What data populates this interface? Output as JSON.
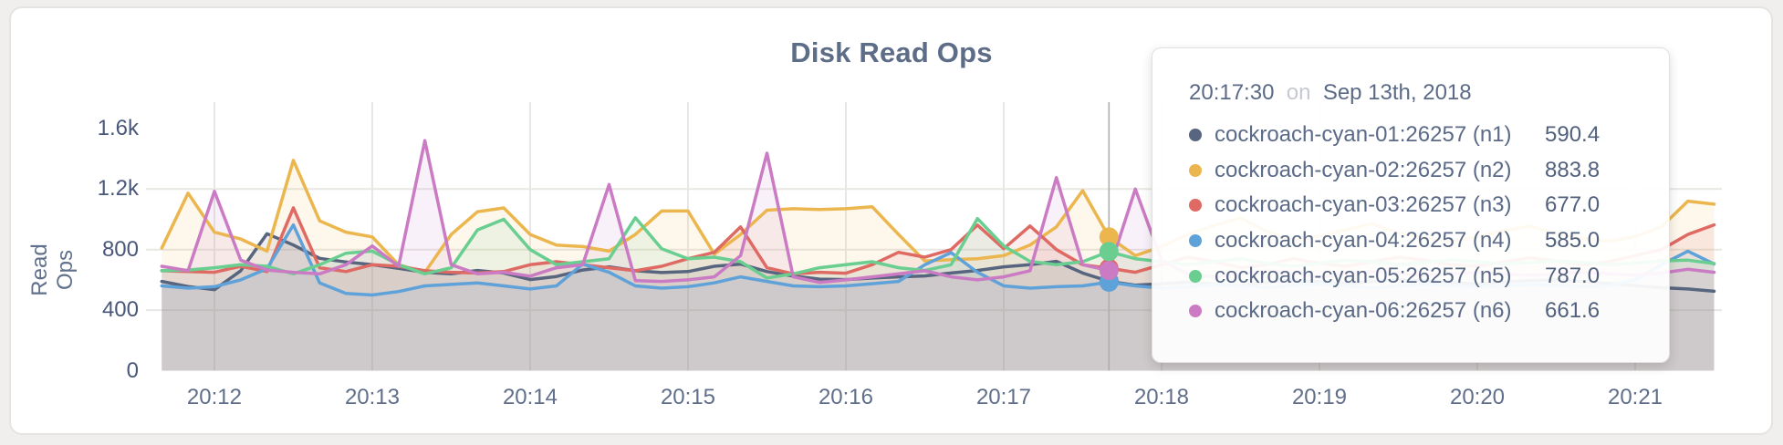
{
  "header": {
    "title": "Disk Read Ops"
  },
  "colors": {
    "grid": "#E8E7E4",
    "crosshair": "#ADADAD",
    "axis_text": "#5F6E8A"
  },
  "chart_data": {
    "type": "line",
    "title": "Disk Read Ops",
    "xlabel": "",
    "ylabel": "Read Ops",
    "ylim": [
      0,
      1610
    ],
    "grid": true,
    "legend_position": "none",
    "start_time": "20:11:40",
    "sample_interval_seconds": 10,
    "x_ticks": [
      "20:12",
      "20:13",
      "20:14",
      "20:15",
      "20:16",
      "20:17",
      "20:18",
      "20:19",
      "20:20",
      "20:21"
    ],
    "y_ticks": [
      {
        "label": "0",
        "value": 0,
        "grid": false
      },
      {
        "label": "400",
        "value": 400,
        "grid": true
      },
      {
        "label": "800",
        "value": 800,
        "grid": true
      },
      {
        "label": "1.2k",
        "value": 1200,
        "grid": true
      },
      {
        "label": "1.6k",
        "value": 1600,
        "grid": false
      }
    ],
    "series": [
      {
        "name": "cockroach-cyan-01:26257 (n1)",
        "node": "n1",
        "color": "#57657F",
        "values": [
          590,
          556,
          535,
          660,
          905,
          830,
          742,
          718,
          700,
          676,
          650,
          640,
          662,
          645,
          602,
          622,
          665,
          686,
          660,
          648,
          655,
          690,
          704,
          655,
          625,
          605,
          602,
          612,
          620,
          626,
          645,
          662,
          686,
          700,
          722,
          645,
          590.4,
          565,
          575,
          585,
          572,
          560,
          585,
          598,
          588,
          574,
          590,
          602,
          596,
          582,
          572,
          586,
          596,
          600,
          590,
          576,
          562,
          548,
          540,
          525
        ]
      },
      {
        "name": "cockroach-cyan-02:26257 (n2)",
        "node": "n2",
        "color": "#ECB64E",
        "values": [
          810,
          1173,
          915,
          870,
          790,
          1390,
          990,
          915,
          884,
          700,
          650,
          900,
          1050,
          1075,
          900,
          830,
          820,
          790,
          900,
          1055,
          1055,
          770,
          900,
          1060,
          1070,
          1065,
          1070,
          1083,
          900,
          725,
          734,
          740,
          760,
          830,
          950,
          1190,
          883.8,
          760,
          820,
          900,
          960,
          1010,
          920,
          860,
          890,
          930,
          970,
          910,
          875,
          855,
          885,
          925,
          955,
          905,
          875,
          855,
          885,
          950,
          1120,
          1100
        ]
      },
      {
        "name": "cockroach-cyan-03:26257 (n3)",
        "node": "n3",
        "color": "#DE6A63",
        "values": [
          660,
          655,
          650,
          690,
          655,
          1076,
          680,
          655,
          700,
          690,
          660,
          650,
          645,
          655,
          700,
          720,
          700,
          680,
          660,
          690,
          740,
          782,
          950,
          680,
          640,
          650,
          644,
          700,
          782,
          750,
          800,
          962,
          806,
          956,
          800,
          700,
          677,
          650,
          700,
          750,
          720,
          680,
          700,
          740,
          710,
          690,
          720,
          750,
          730,
          700,
          690,
          720,
          745,
          725,
          700,
          720,
          760,
          800,
          900,
          963
        ]
      },
      {
        "name": "cockroach-cyan-04:26257 (n4)",
        "node": "n4",
        "color": "#5FA2D9",
        "values": [
          560,
          545,
          555,
          600,
          674,
          963,
          580,
          511,
          500,
          523,
          560,
          570,
          580,
          560,
          540,
          560,
          704,
          650,
          560,
          545,
          555,
          580,
          620,
          590,
          560,
          555,
          560,
          575,
          590,
          700,
          780,
          650,
          560,
          545,
          555,
          560,
          585,
          560,
          545,
          555,
          570,
          560,
          550,
          565,
          575,
          560,
          548,
          560,
          572,
          565,
          552,
          560,
          570,
          565,
          555,
          560,
          600,
          700,
          790,
          705
        ]
      },
      {
        "name": "cockroach-cyan-05:26257 (n5)",
        "node": "n5",
        "color": "#69CE90",
        "values": [
          660,
          665,
          680,
          700,
          690,
          640,
          700,
          776,
          790,
          700,
          640,
          680,
          930,
          1000,
          800,
          700,
          720,
          740,
          1010,
          806,
          740,
          750,
          720,
          612,
          640,
          680,
          700,
          720,
          680,
          662,
          700,
          1005,
          824,
          722,
          700,
          720,
          787,
          740,
          720,
          700,
          720,
          740,
          710,
          690,
          710,
          730,
          720,
          700,
          715,
          730,
          720,
          705,
          715,
          725,
          715,
          700,
          710,
          725,
          730,
          708
        ]
      },
      {
        "name": "cockroach-cyan-06:26257 (n6)",
        "node": "n6",
        "color": "#CB7BC4",
        "values": [
          690,
          660,
          1185,
          730,
          665,
          650,
          640,
          700,
          824,
          690,
          1520,
          700,
          640,
          650,
          625,
          680,
          700,
          1230,
          595,
          590,
          600,
          620,
          760,
          1437,
          620,
          583,
          600,
          620,
          640,
          660,
          620,
          600,
          620,
          660,
          1275,
          700,
          661.6,
          1200,
          728,
          640,
          620,
          640,
          660,
          640,
          620,
          640,
          655,
          645,
          630,
          640,
          650,
          640,
          630,
          640,
          650,
          640,
          630,
          645,
          670,
          650
        ]
      }
    ],
    "hover": {
      "index": 36,
      "time": "20:17:30",
      "date_connector": "on",
      "date": "Sep 13th, 2018",
      "rows": [
        {
          "label": "cockroach-cyan-01:26257 (n1)",
          "value": "590.4",
          "value_num": 590.4
        },
        {
          "label": "cockroach-cyan-02:26257 (n2)",
          "value": "883.8",
          "value_num": 883.8
        },
        {
          "label": "cockroach-cyan-03:26257 (n3)",
          "value": "677.0",
          "value_num": 677.0
        },
        {
          "label": "cockroach-cyan-04:26257 (n4)",
          "value": "585.0",
          "value_num": 585.0
        },
        {
          "label": "cockroach-cyan-05:26257 (n5)",
          "value": "787.0",
          "value_num": 787.0
        },
        {
          "label": "cockroach-cyan-06:26257 (n6)",
          "value": "661.6",
          "value_num": 661.6
        }
      ]
    }
  }
}
